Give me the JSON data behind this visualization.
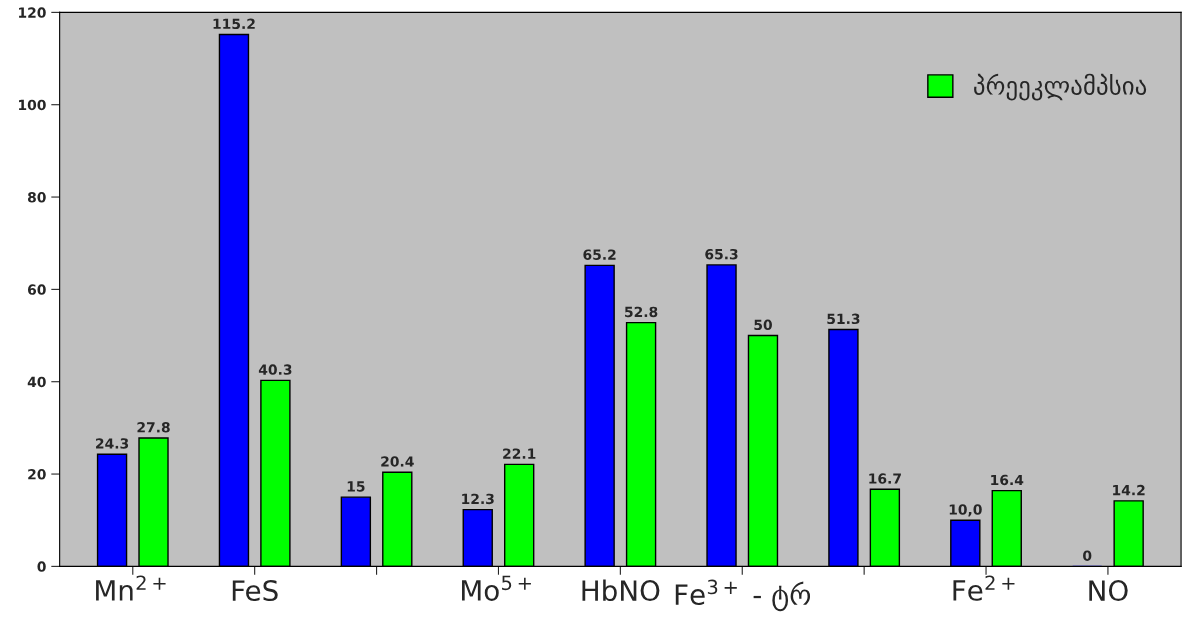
{
  "chart_data": {
    "type": "bar",
    "categories": [
      "Mn$^{2+}$",
      "FeS",
      null,
      "Mo$^{5+}$",
      "HbNO",
      "Fe$^{3+}$ - ტრ",
      null,
      "Fe$^{2+}$",
      "NO"
    ],
    "series": [
      {
        "color": "#0000ff",
        "values": [
          24.3,
          115.2,
          15,
          12.3,
          65.2,
          65.3,
          51.3,
          10.0,
          0
        ],
        "value_labels": [
          "24.3",
          "115.2",
          "15",
          "12.3",
          "65.2",
          "65.3",
          "51.3",
          "10,0",
          "0"
        ]
      },
      {
        "name": "პრეეკლამპსია",
        "color": "#00ff00",
        "values": [
          27.8,
          40.3,
          20.4,
          22.1,
          52.8,
          50,
          16.7,
          16.4,
          14.2
        ],
        "value_labels": [
          "27.8",
          "40.3",
          "20.4",
          "22.1",
          "52.8",
          "50",
          "16.7",
          "16.4",
          "14.2"
        ]
      }
    ],
    "ylim": [
      0,
      120
    ],
    "yticks": [
      0,
      20,
      40,
      60,
      80,
      100,
      120
    ],
    "grid": false,
    "legend": "top right"
  }
}
